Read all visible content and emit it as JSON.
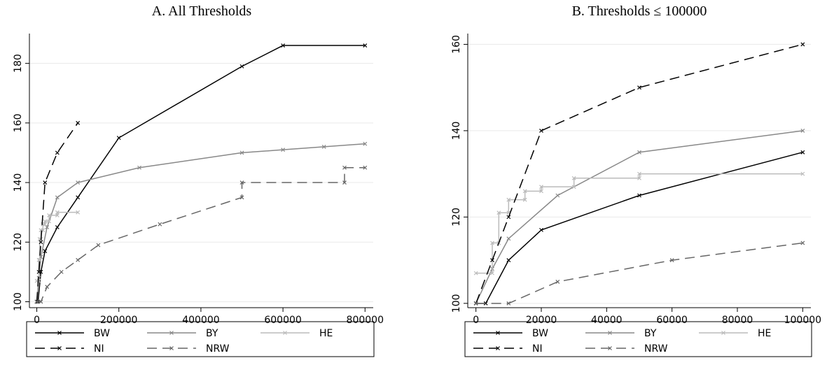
{
  "chart_data": [
    {
      "type": "line",
      "title": "A. All Thresholds",
      "grid": true,
      "xlim": [
        -18000,
        820000
      ],
      "xticks": [
        0,
        200000,
        400000,
        600000,
        800000
      ],
      "ylim": [
        98,
        190
      ],
      "yticks": [
        100,
        120,
        140,
        160,
        180
      ],
      "series": [
        {
          "name": "BW",
          "color": "#000000",
          "dash": false,
          "x": [
            0,
            3000,
            10000,
            20000,
            50000,
            100000,
            200000,
            500000,
            600000,
            800000
          ],
          "values": [
            100,
            100,
            110,
            117,
            125,
            135,
            155,
            179,
            186,
            186
          ]
        },
        {
          "name": "BY",
          "color": "#888888",
          "dash": false,
          "x": [
            0,
            5000,
            10000,
            25000,
            50000,
            100000,
            250000,
            500000,
            600000,
            700000,
            800000
          ],
          "values": [
            100,
            108,
            115,
            125,
            135,
            140,
            145,
            150,
            151,
            152,
            153
          ]
        },
        {
          "name": "HE",
          "color": "#bbbbbb",
          "dash": false,
          "x": [
            0,
            5000,
            5000,
            7000,
            7000,
            10000,
            10000,
            15000,
            15000,
            20000,
            20000,
            30000,
            30000,
            50000,
            50000,
            100000
          ],
          "values": [
            107,
            107,
            114,
            114,
            121,
            121,
            124,
            124,
            126,
            126,
            127,
            127,
            129,
            129,
            130,
            130
          ]
        },
        {
          "name": "NI",
          "color": "#000000",
          "dash": true,
          "x": [
            0,
            5000,
            10000,
            20000,
            50000,
            100000
          ],
          "values": [
            100,
            110,
            120,
            140,
            150,
            160
          ]
        },
        {
          "name": "NRW",
          "color": "#666666",
          "dash": true,
          "x": [
            0,
            10000,
            25000,
            60000,
            100000,
            150000,
            300000,
            500000,
            500000,
            750000,
            750000,
            800000
          ],
          "values": [
            100,
            100,
            105,
            110,
            114,
            119,
            126,
            135,
            140,
            140,
            145,
            145
          ]
        }
      ]
    },
    {
      "type": "line",
      "title": "B. Thresholds ≤ 100000",
      "grid": true,
      "xlim": [
        -2500,
        102500
      ],
      "xticks": [
        0,
        20000,
        40000,
        60000,
        80000,
        100000
      ],
      "ylim": [
        99,
        162.5
      ],
      "yticks": [
        100,
        120,
        140,
        160
      ],
      "series": [
        {
          "name": "BW",
          "color": "#000000",
          "dash": false,
          "x": [
            0,
            3000,
            10000,
            20000,
            50000,
            100000
          ],
          "values": [
            100,
            100,
            110,
            117,
            125,
            135
          ]
        },
        {
          "name": "BY",
          "color": "#888888",
          "dash": false,
          "x": [
            0,
            5000,
            10000,
            25000,
            50000,
            100000
          ],
          "values": [
            100,
            108,
            115,
            125,
            135,
            140
          ]
        },
        {
          "name": "HE",
          "color": "#bbbbbb",
          "dash": false,
          "x": [
            0,
            5000,
            5000,
            7000,
            7000,
            10000,
            10000,
            15000,
            15000,
            20000,
            20000,
            30000,
            30000,
            50000,
            50000,
            100000
          ],
          "values": [
            107,
            107,
            114,
            114,
            121,
            121,
            124,
            124,
            126,
            126,
            127,
            127,
            129,
            129,
            130,
            130
          ]
        },
        {
          "name": "NI",
          "color": "#000000",
          "dash": true,
          "x": [
            0,
            5000,
            10000,
            20000,
            50000,
            100000
          ],
          "values": [
            100,
            110,
            120,
            140,
            150,
            160
          ]
        },
        {
          "name": "NRW",
          "color": "#666666",
          "dash": true,
          "x": [
            0,
            10000,
            25000,
            60000,
            100000
          ],
          "values": [
            100,
            100,
            105,
            110,
            114
          ]
        }
      ]
    }
  ]
}
